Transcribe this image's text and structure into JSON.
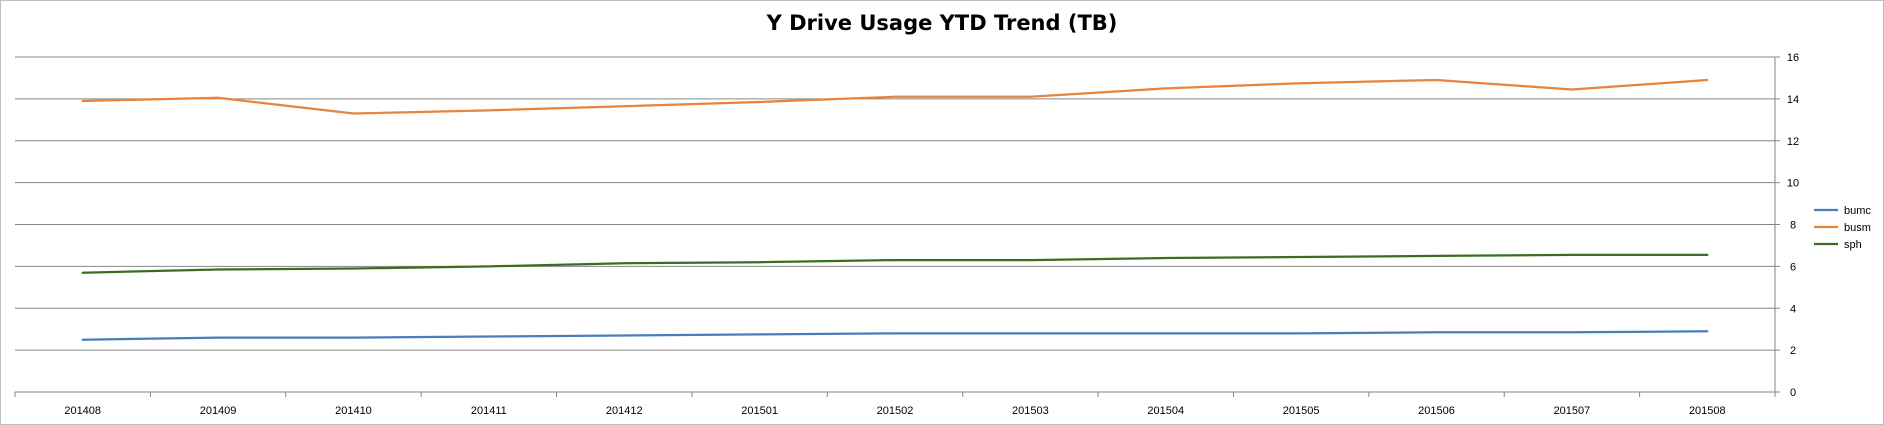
{
  "chart_data": {
    "type": "line",
    "title": "Y Drive Usage YTD Trend (TB)",
    "xlabel": "",
    "ylabel": "",
    "categories": [
      "201408",
      "201409",
      "201410",
      "201411",
      "201412",
      "201501",
      "201502",
      "201503",
      "201504",
      "201505",
      "201506",
      "201507",
      "201508"
    ],
    "ylim": [
      0,
      16
    ],
    "yticks": [
      0,
      2,
      4,
      6,
      8,
      10,
      12,
      14,
      16
    ],
    "y_axis_side": "right",
    "grid": true,
    "legend_position": "right",
    "series": [
      {
        "name": "bumc",
        "color": "#4a7ebb",
        "values": [
          2.5,
          2.6,
          2.6,
          2.65,
          2.7,
          2.75,
          2.8,
          2.8,
          2.8,
          2.8,
          2.85,
          2.85,
          2.9
        ]
      },
      {
        "name": "busm",
        "color": "#e8843c",
        "values": [
          13.9,
          14.05,
          13.3,
          13.45,
          13.65,
          13.85,
          14.1,
          14.1,
          14.5,
          14.75,
          14.9,
          14.45,
          14.9
        ]
      },
      {
        "name": "sph",
        "color": "#3a6e1f",
        "values": [
          5.7,
          5.85,
          5.9,
          6.0,
          6.15,
          6.2,
          6.3,
          6.3,
          6.4,
          6.45,
          6.5,
          6.55,
          6.55
        ]
      }
    ]
  }
}
